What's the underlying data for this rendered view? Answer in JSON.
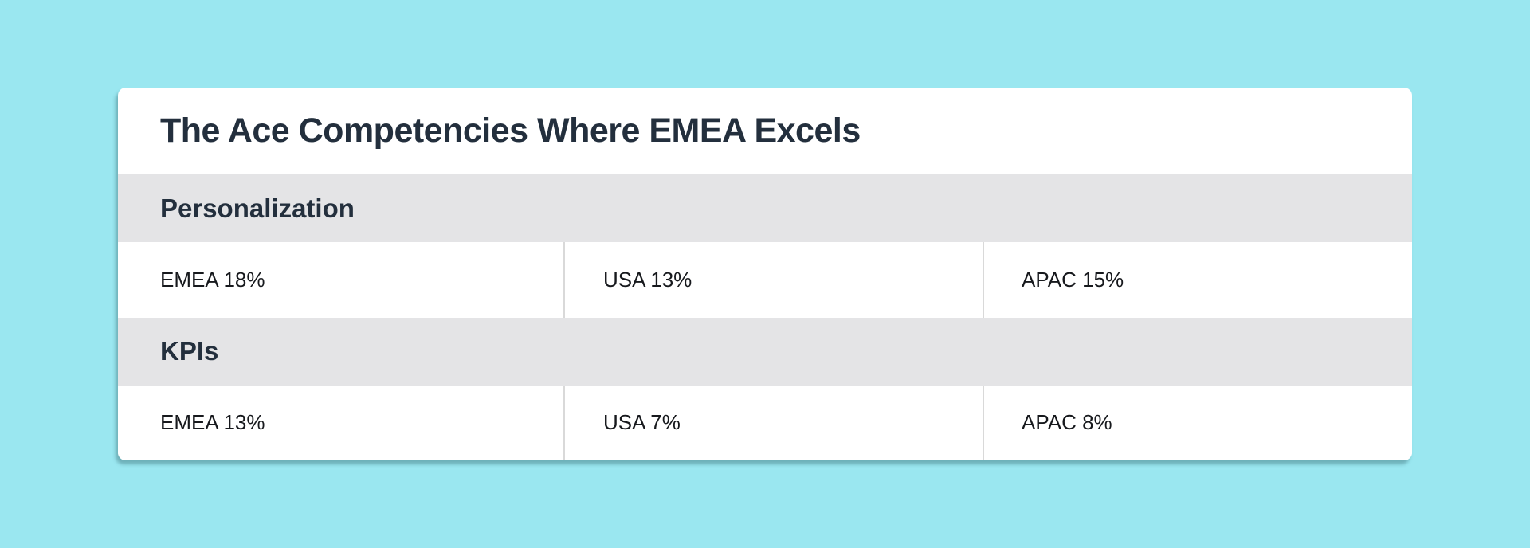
{
  "card": {
    "title": "The Ace Competencies Where EMEA Excels",
    "sections": [
      {
        "header": "Personalization",
        "cells": [
          "EMEA 18%",
          "USA 13%",
          "APAC 15%"
        ]
      },
      {
        "header": "KPIs",
        "cells": [
          "EMEA 13%",
          "USA 7%",
          "APAC 8%"
        ]
      }
    ]
  },
  "colors": {
    "page_background": "#9ae7f0",
    "card_background": "#ffffff",
    "section_header_background": "#e4e4e6",
    "title_text": "#232f3d",
    "cell_text": "#17191d",
    "divider": "#d9d9d9"
  },
  "chart_data": {
    "type": "table",
    "title": "The Ace Competencies Where EMEA Excels",
    "columns": [
      "EMEA",
      "USA",
      "APAC"
    ],
    "series": [
      {
        "name": "Personalization",
        "values": [
          18,
          13,
          15
        ]
      },
      {
        "name": "KPIs",
        "values": [
          13,
          7,
          8
        ]
      }
    ],
    "unit": "%"
  }
}
